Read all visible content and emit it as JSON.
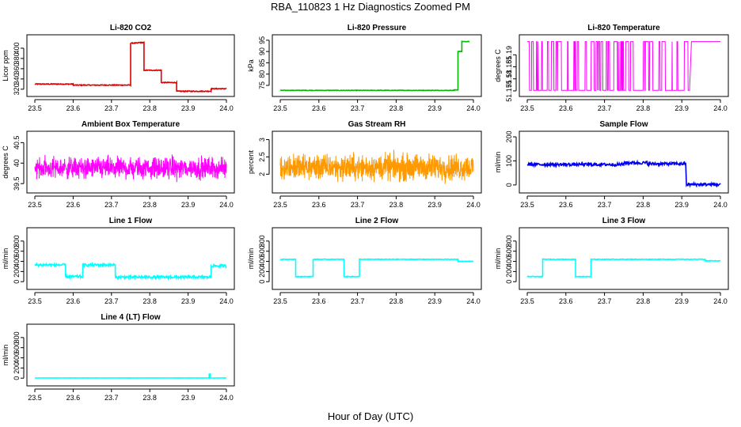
{
  "title": "RBA_110823  1 Hz Diagnostics Zoomed PM",
  "xlabel": "Hour of Day (UTC)",
  "chart_data": [
    {
      "type": "line",
      "title": "Li-820 CO2",
      "ylabel": "Licor ppm",
      "color": "#dd0000",
      "xlim": [
        23.5,
        24.0
      ],
      "ylim": [
        312,
        420
      ],
      "xticks": [
        23.5,
        23.6,
        23.7,
        23.8,
        23.9,
        24.0
      ],
      "yticks": [
        320,
        340,
        360,
        380,
        400
      ],
      "noise": 0.8,
      "segments": [
        [
          23.5,
          23.6,
          330
        ],
        [
          23.6,
          23.75,
          328
        ],
        [
          23.75,
          23.77,
          410
        ],
        [
          23.77,
          23.785,
          411
        ],
        [
          23.785,
          23.83,
          357
        ],
        [
          23.83,
          23.87,
          333
        ],
        [
          23.87,
          23.96,
          316
        ],
        [
          23.96,
          24.0,
          321
        ]
      ]
    },
    {
      "type": "line",
      "title": "Li-820 Pressure",
      "ylabel": "kPa",
      "color": "#00bb00",
      "xlim": [
        23.5,
        24.0
      ],
      "ylim": [
        71.5,
        96
      ],
      "xticks": [
        23.5,
        23.6,
        23.7,
        23.8,
        23.9,
        24.0
      ],
      "yticks": [
        75,
        80,
        85,
        90,
        95
      ],
      "noise": 0.1,
      "segments": [
        [
          23.5,
          23.95,
          72.8
        ],
        [
          23.95,
          23.96,
          73.0
        ],
        [
          23.96,
          23.97,
          90
        ],
        [
          23.97,
          23.99,
          94.4
        ]
      ]
    },
    {
      "type": "binary",
      "title": "Li-820 Temperature",
      "ylabel": "degrees C",
      "color": "#ff00ff",
      "xlim": [
        23.5,
        24.0
      ],
      "ylim": [
        51.174,
        51.197
      ],
      "xticks": [
        23.5,
        23.6,
        23.7,
        23.8,
        23.9,
        24.0
      ],
      "yticks": [
        51.175,
        51.18,
        51.185,
        51.19
      ],
      "levels": [
        51.1752,
        51.1955
      ],
      "lowfrac": 0.5,
      "span": [
        23.5,
        23.92
      ]
    },
    {
      "type": "noise",
      "title": "Ambient Box Temperature",
      "ylabel": "degrees C",
      "color": "#ff00ff",
      "xlim": [
        23.5,
        24.0
      ],
      "ylim": [
        39.35,
        40.7
      ],
      "xticks": [
        23.5,
        23.6,
        23.7,
        23.8,
        23.9,
        24.0
      ],
      "yticks": [
        39.5,
        40.0,
        40.5
      ],
      "center": 39.88,
      "amp": 0.38
    },
    {
      "type": "noise",
      "title": "Gas Stream RH",
      "ylabel": "percent",
      "color": "#ff9900",
      "xlim": [
        23.5,
        24.0
      ],
      "ylim": [
        1.55,
        3.15
      ],
      "xticks": [
        23.5,
        23.6,
        23.7,
        23.8,
        23.9,
        24.0
      ],
      "yticks": [
        2.0,
        2.5,
        3.0
      ],
      "center": 2.2,
      "amp": 0.55
    },
    {
      "type": "line",
      "title": "Sample Flow",
      "ylabel": "ml/min",
      "color": "#0000ee",
      "xlim": [
        23.5,
        24.0
      ],
      "ylim": [
        -20,
        210
      ],
      "xticks": [
        23.5,
        23.6,
        23.7,
        23.8,
        23.9,
        24.0
      ],
      "yticks": [
        0,
        100,
        200
      ],
      "noise": 6,
      "segments": [
        [
          23.5,
          23.75,
          85
        ],
        [
          23.75,
          23.81,
          92
        ],
        [
          23.81,
          23.91,
          88
        ],
        [
          23.912,
          24.0,
          2
        ]
      ]
    },
    {
      "type": "line",
      "title": "Line 1 Flow",
      "ylabel": "ml/min",
      "color": "#00ffff",
      "xlim": [
        23.5,
        24.0
      ],
      "ylim": [
        -90,
        1000
      ],
      "xticks": [
        23.5,
        23.6,
        23.7,
        23.8,
        23.9,
        24.0
      ],
      "yticks": [
        0,
        200,
        400,
        600,
        800
      ],
      "noise": 25,
      "segments": [
        [
          23.5,
          23.58,
          330
        ],
        [
          23.58,
          23.625,
          100
        ],
        [
          23.625,
          23.71,
          330
        ],
        [
          23.71,
          23.96,
          90
        ],
        [
          23.96,
          24.0,
          310
        ]
      ]
    },
    {
      "type": "line",
      "title": "Line 2 Flow",
      "ylabel": "ml/min",
      "color": "#00ffff",
      "xlim": [
        23.5,
        24.0
      ],
      "ylim": [
        -90,
        1000
      ],
      "xticks": [
        23.5,
        23.6,
        23.7,
        23.8,
        23.9,
        24.0
      ],
      "yticks": [
        0,
        200,
        400,
        600,
        800
      ],
      "noise": 6,
      "segments": [
        [
          23.5,
          23.54,
          440
        ],
        [
          23.54,
          23.585,
          100
        ],
        [
          23.585,
          23.665,
          440
        ],
        [
          23.665,
          23.705,
          100
        ],
        [
          23.705,
          23.96,
          440
        ],
        [
          23.96,
          24.0,
          400
        ]
      ]
    },
    {
      "type": "line",
      "title": "Line 3 Flow",
      "ylabel": "ml/min",
      "color": "#00ffff",
      "xlim": [
        23.5,
        24.0
      ],
      "ylim": [
        -90,
        1000
      ],
      "xticks": [
        23.5,
        23.6,
        23.7,
        23.8,
        23.9,
        24.0
      ],
      "yticks": [
        0,
        200,
        400,
        600,
        800
      ],
      "noise": 6,
      "segments": [
        [
          23.5,
          23.54,
          100
        ],
        [
          23.54,
          23.625,
          440
        ],
        [
          23.625,
          23.665,
          100
        ],
        [
          23.665,
          23.96,
          440
        ],
        [
          23.96,
          24.0,
          410
        ]
      ]
    },
    {
      "type": "line",
      "title": "Line 4 (LT) Flow",
      "ylabel": "ml/min",
      "color": "#00ffff",
      "xlim": [
        23.5,
        24.0
      ],
      "ylim": [
        -90,
        1000
      ],
      "xticks": [
        23.5,
        23.6,
        23.7,
        23.8,
        23.9,
        24.0
      ],
      "yticks": [
        0,
        200,
        400,
        600,
        800
      ],
      "noise": 2,
      "segments": [
        [
          23.5,
          23.955,
          3
        ],
        [
          23.955,
          23.958,
          80
        ],
        [
          23.958,
          24.0,
          3
        ]
      ]
    }
  ]
}
